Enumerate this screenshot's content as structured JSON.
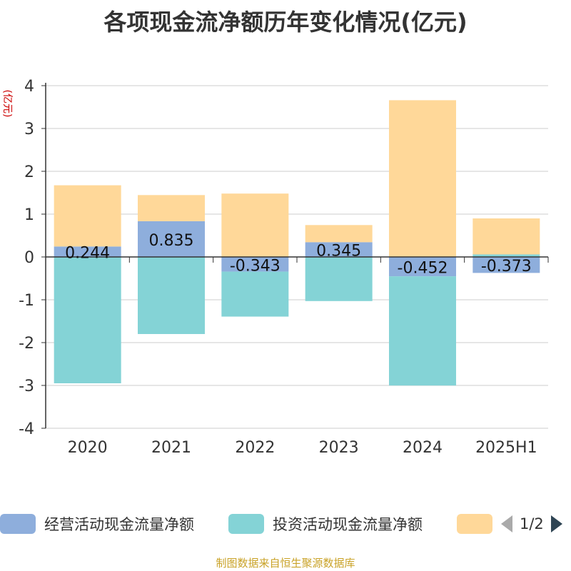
{
  "title": "各项现金流净额历年变化情况(亿元)",
  "footer": "制图数据来自恒生聚源数据库",
  "colors": {
    "operating": "#8eaedc",
    "investing": "#84d3d6",
    "financing": "#ffd899",
    "axis": "#333333",
    "grid": "#cccccc",
    "ylabel": "#cc0000",
    "pager_prev": "#aaaaaa",
    "pager_next": "#2f4554"
  },
  "legend": {
    "items": [
      {
        "label": "经营活动现金流量净额"
      },
      {
        "label": "投资活动现金流量净额"
      },
      {
        "label": ""
      }
    ],
    "page": "1/2"
  },
  "chart_data": {
    "type": "bar",
    "stacked": true,
    "ylabel": "(亿元)",
    "ylim": [
      -4,
      4
    ],
    "yticks": [
      4,
      3,
      2,
      1,
      0,
      -1,
      -2,
      -3,
      -4
    ],
    "grid": true,
    "legend_position": "bottom",
    "categories": [
      "2020",
      "2021",
      "2022",
      "2023",
      "2024",
      "2025H1"
    ],
    "series": [
      {
        "name": "经营活动现金流量净额",
        "values": [
          0.244,
          0.835,
          -0.343,
          0.345,
          -0.452,
          -0.373
        ],
        "labels": [
          "0.244",
          "0.835",
          "-0.343",
          "0.345",
          "-0.452",
          "-0.373"
        ]
      },
      {
        "name": "投资活动现金流量净额",
        "values": [
          -2.95,
          -1.8,
          -1.05,
          -1.03,
          -2.55,
          0.06
        ]
      },
      {
        "values": [
          1.43,
          0.61,
          1.48,
          0.4,
          3.66,
          0.84
        ]
      }
    ]
  }
}
